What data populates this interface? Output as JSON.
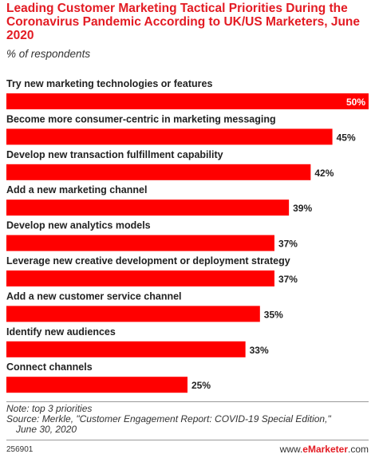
{
  "chart_data": {
    "type": "bar",
    "orientation": "horizontal",
    "title": "Leading Customer Marketing Tactical Priorities During the Coronavirus Pandemic According to UK/US Marketers, June 2020",
    "subtitle": "% of respondents",
    "categories": [
      "Try new marketing technologies or features",
      "Become more consumer-centric in marketing messaging",
      "Develop new transaction fulfillment capability",
      "Add a new marketing channel",
      "Develop new analytics models",
      "Leverage new creative development or deployment strategy",
      "Add a new customer service channel",
      "Identify new audiences",
      "Connect channels"
    ],
    "values": [
      50,
      45,
      42,
      39,
      37,
      37,
      35,
      33,
      25
    ],
    "value_labels": [
      "50%",
      "45%",
      "42%",
      "39%",
      "37%",
      "37%",
      "35%",
      "33%",
      "25%"
    ],
    "xlim": [
      0,
      50
    ],
    "bar_color": "#ff0000",
    "grid": false
  },
  "footer": {
    "note": "Note: top 3 priorities",
    "source": "Source: Merkle, \"Customer Engagement Report: COVID-19 Special Edition,\"",
    "source_date": "June 30, 2020",
    "chart_id": "256901",
    "brand_prefix": "www.",
    "brand_name": "eMarketer",
    "brand_suffix": ".com"
  }
}
